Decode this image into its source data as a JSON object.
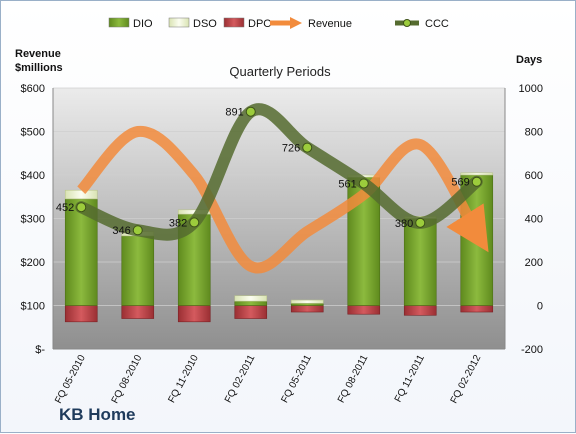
{
  "company": "KB Home",
  "chart_data": {
    "type": "bar",
    "title": "Quarterly Periods",
    "left_axis_label_line1": "Revenue",
    "left_axis_label_line2": "$millions",
    "right_axis_label": "Days",
    "categories": [
      "FQ 05-2010",
      "FQ 08-2010",
      "FQ 11-2010",
      "FQ 02-2011",
      "FQ 05-2011",
      "FQ 08-2011",
      "FQ 11-2011",
      "FQ 02-2012"
    ],
    "left_axis": {
      "min": 0,
      "max": 600,
      "ticks": [
        "$-",
        "$100",
        "$200",
        "$300",
        "$400",
        "$500",
        "$600"
      ]
    },
    "right_axis": {
      "min": -200,
      "max": 1000,
      "ticks": [
        "-200",
        "0",
        "200",
        "400",
        "600",
        "800",
        "1000"
      ]
    },
    "legend_position": "top",
    "series": [
      {
        "name": "DIO",
        "kind": "bar",
        "axis": "right",
        "color": "#76a02c",
        "values": [
          490,
          320,
          420,
          20,
          10,
          590,
          400,
          600
        ]
      },
      {
        "name": "DSO",
        "kind": "bar",
        "axis": "right",
        "color": "#eef3d6",
        "values": [
          40,
          20,
          20,
          25,
          15,
          10,
          10,
          10
        ]
      },
      {
        "name": "DPO",
        "kind": "bar",
        "axis": "right",
        "color": "#c0464a",
        "values": [
          -75,
          -60,
          -75,
          -60,
          -30,
          -40,
          -45,
          -30
        ]
      },
      {
        "name": "Revenue",
        "kind": "line",
        "axis": "left",
        "color": "#f28b3c",
        "values": [
          365,
          500,
          400,
          190,
          270,
          355,
          470,
          265
        ]
      },
      {
        "name": "CCC",
        "kind": "line",
        "axis": "right",
        "color": "#556b2f",
        "values": [
          452,
          346,
          382,
          891,
          726,
          561,
          380,
          569
        ],
        "labels": [
          "452",
          "346",
          "382",
          "891",
          "726",
          "561",
          "380",
          "569"
        ]
      }
    ]
  }
}
